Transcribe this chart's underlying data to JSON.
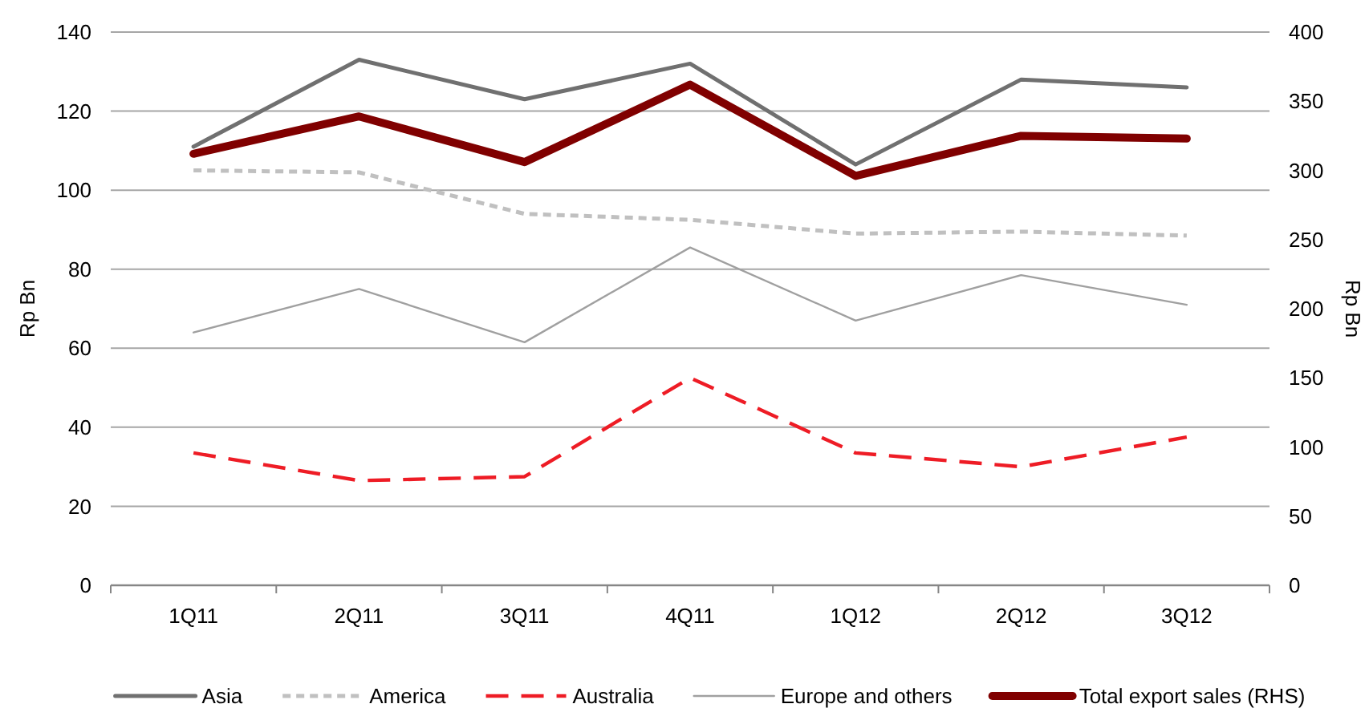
{
  "chart_data": {
    "type": "line",
    "categories": [
      "1Q11",
      "2Q11",
      "3Q11",
      "4Q11",
      "1Q12",
      "2Q12",
      "3Q12"
    ],
    "ylabel": "Rp Bn",
    "y2label": "Rp Bn",
    "ylim": [
      0,
      140
    ],
    "yticks": [
      0,
      20,
      40,
      60,
      80,
      100,
      120,
      140
    ],
    "y2lim": [
      0,
      400
    ],
    "y2ticks": [
      0,
      50,
      100,
      150,
      200,
      250,
      300,
      350,
      400
    ],
    "grid": "y",
    "legend": "bottom",
    "series": [
      {
        "name": "Asia",
        "color": "#707070",
        "line_style": "solid",
        "values": [
          111,
          133,
          123,
          132,
          106.5,
          128,
          126
        ]
      },
      {
        "name": "America",
        "color": "#c0c0c0",
        "line_style": "dashed",
        "values": [
          105,
          104.5,
          94,
          92.5,
          89,
          89.5,
          88.5
        ]
      },
      {
        "name": "Australia",
        "color": "#ee1c25",
        "line_style": "dashed",
        "values": [
          33.5,
          26.5,
          27.5,
          52.5,
          33.5,
          30,
          37.5
        ]
      },
      {
        "name": "Europe and others",
        "color": "#a0a0a0",
        "line_style": "solid",
        "values": [
          64,
          75,
          61.5,
          85.5,
          67,
          78.5,
          71
        ]
      },
      {
        "name": "Total export sales (RHS)",
        "color": "#800000",
        "line_style": "solid",
        "axis": "y2",
        "values": [
          312,
          339,
          306,
          362,
          296,
          325,
          323
        ]
      }
    ]
  }
}
